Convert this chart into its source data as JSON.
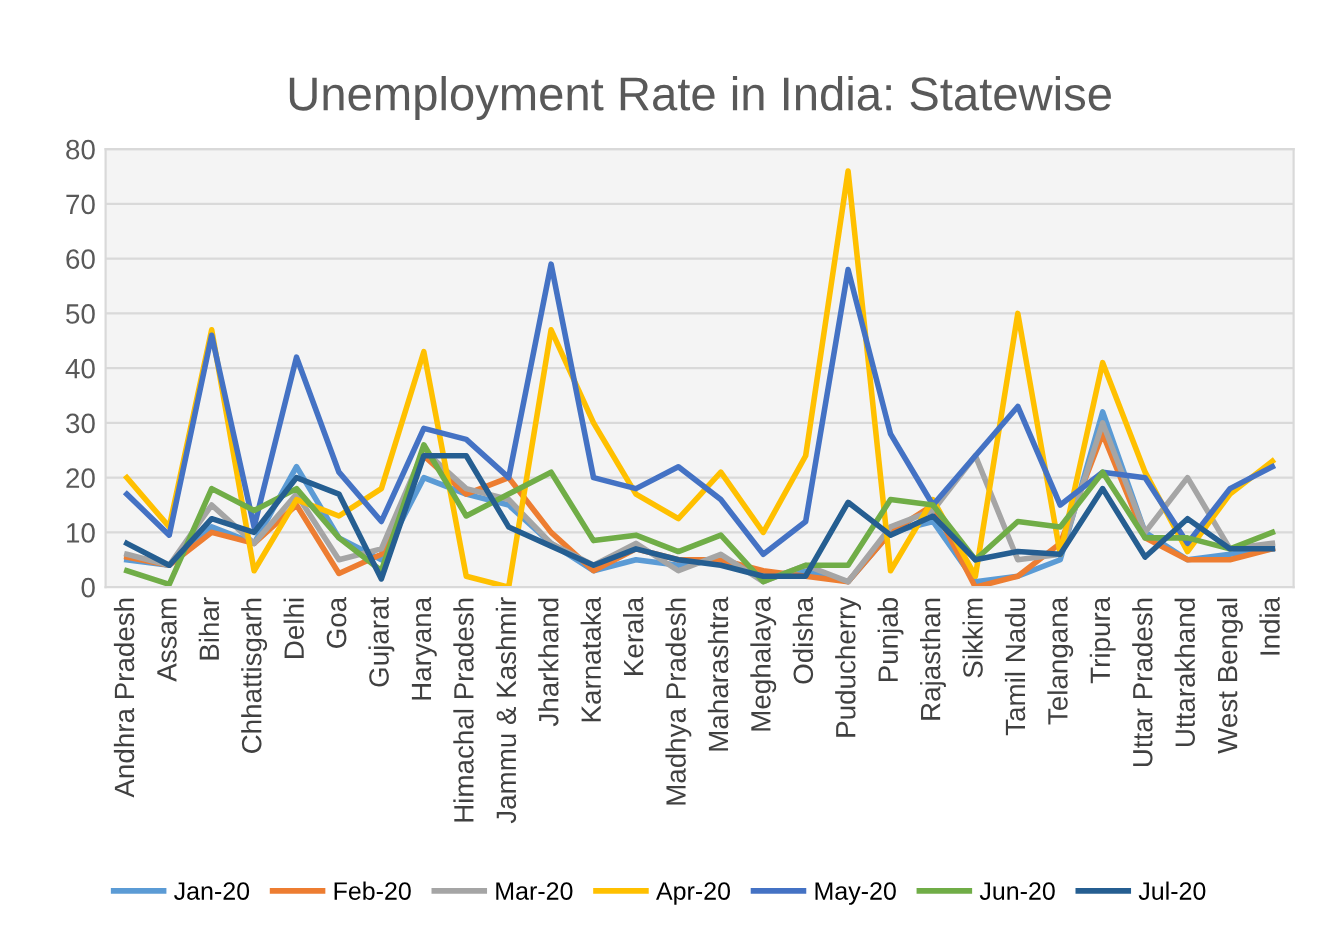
{
  "chart_data": {
    "type": "line",
    "title": "Unemployment Rate in India: Statewise",
    "categories": [
      "Andhra Pradesh",
      "Assam",
      "Bihar",
      "Chhattisgarh",
      "Delhi",
      "Goa",
      "Gujarat",
      "Haryana",
      "Himachal Pradesh",
      "Jammu & Kashmir",
      "Jharkhand",
      "Karnataka",
      "Kerala",
      "Madhya Pradesh",
      "Maharashtra",
      "Meghalaya",
      "Odisha",
      "Puducherry",
      "Punjab",
      "Rajasthan",
      "Sikkim",
      "Tamil Nadu",
      "Telangana",
      "Tripura",
      "Uttar Pradesh",
      "Uttarakhand",
      "West Bengal",
      "India"
    ],
    "series": [
      {
        "name": "Jan-20",
        "color": "#5b9bd5",
        "values": [
          5,
          4,
          11,
          8,
          22,
          9,
          5,
          20,
          17,
          15,
          8,
          3,
          5,
          4,
          5,
          2,
          3,
          1,
          10,
          12,
          1,
          2,
          5,
          32,
          10,
          5,
          6,
          7
        ]
      },
      {
        "name": "Feb-20",
        "color": "#ed7d31",
        "values": [
          5.5,
          4,
          10,
          8,
          15,
          2.5,
          6,
          24,
          17,
          20,
          10,
          3,
          7,
          5,
          5,
          3,
          2,
          1,
          10,
          15,
          0,
          2,
          8,
          28,
          9,
          5,
          5,
          7
        ]
      },
      {
        "name": "Mar-20",
        "color": "#a5a5a5",
        "values": [
          6,
          4,
          15,
          8,
          17,
          5,
          7,
          25,
          18,
          16,
          8,
          4,
          8,
          3,
          6,
          1,
          4,
          1,
          11,
          14,
          24,
          5,
          6,
          30,
          10,
          20,
          7,
          8
        ]
      },
      {
        "name": "Apr-20",
        "color": "#ffc000",
        "values": [
          20,
          11,
          47,
          3,
          16,
          13,
          18,
          43,
          2,
          0,
          47,
          30,
          17,
          12.5,
          21,
          10,
          24,
          76,
          3,
          16,
          2,
          50,
          6,
          41,
          21,
          6.5,
          17,
          23
        ]
      },
      {
        "name": "May-20",
        "color": "#4472c4",
        "values": [
          17,
          9.5,
          46,
          11,
          42,
          21,
          12,
          29,
          27,
          20,
          59,
          20,
          18,
          22,
          16,
          6,
          12,
          58,
          28,
          15,
          24,
          33,
          15,
          21,
          20,
          8,
          18,
          22
        ]
      },
      {
        "name": "Jun-20",
        "color": "#70ad47",
        "values": [
          3,
          0.5,
          18,
          14,
          18,
          9,
          3,
          26,
          13,
          17,
          21,
          8.5,
          9.5,
          6.5,
          9.5,
          1,
          4,
          4,
          16,
          15,
          5,
          12,
          11,
          21,
          9,
          9,
          7,
          10
        ]
      },
      {
        "name": "Jul-20",
        "color": "#255e91",
        "values": [
          8,
          4,
          12.5,
          10,
          20,
          17,
          1.5,
          24,
          24,
          11,
          7.5,
          4,
          7,
          5,
          4,
          2,
          2,
          15.5,
          9.5,
          13,
          5,
          6.5,
          6,
          18,
          5.5,
          12.5,
          7,
          7
        ]
      }
    ],
    "ylim": [
      0,
      80
    ],
    "yticks": [
      0,
      10,
      20,
      30,
      40,
      50,
      60,
      70,
      80
    ],
    "grid": "y",
    "legend": "bottom",
    "marker": "none",
    "line_style": "solid"
  }
}
